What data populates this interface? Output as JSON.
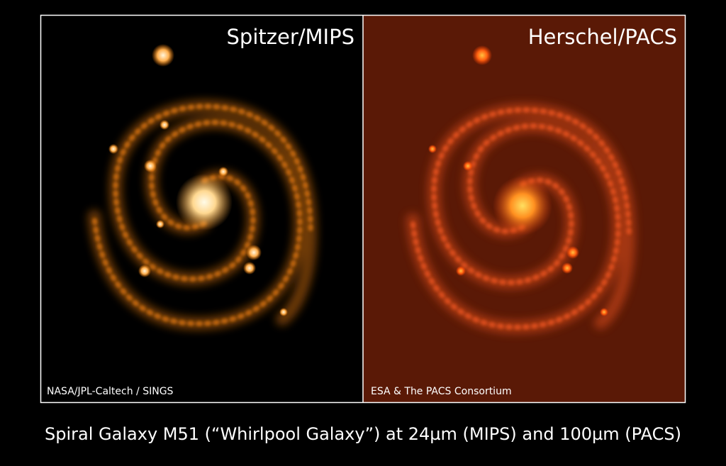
{
  "panels": [
    {
      "title": "Spitzer/MIPS",
      "credit": "NASA/JPL-Caltech / SINGS"
    },
    {
      "title": "Herschel/PACS",
      "credit": "ESA & The PACS Consortium"
    }
  ],
  "caption": "Spiral Galaxy M51 (“Whirlpool Galaxy”) at 24µm (MIPS) and 100µm (PACS)"
}
